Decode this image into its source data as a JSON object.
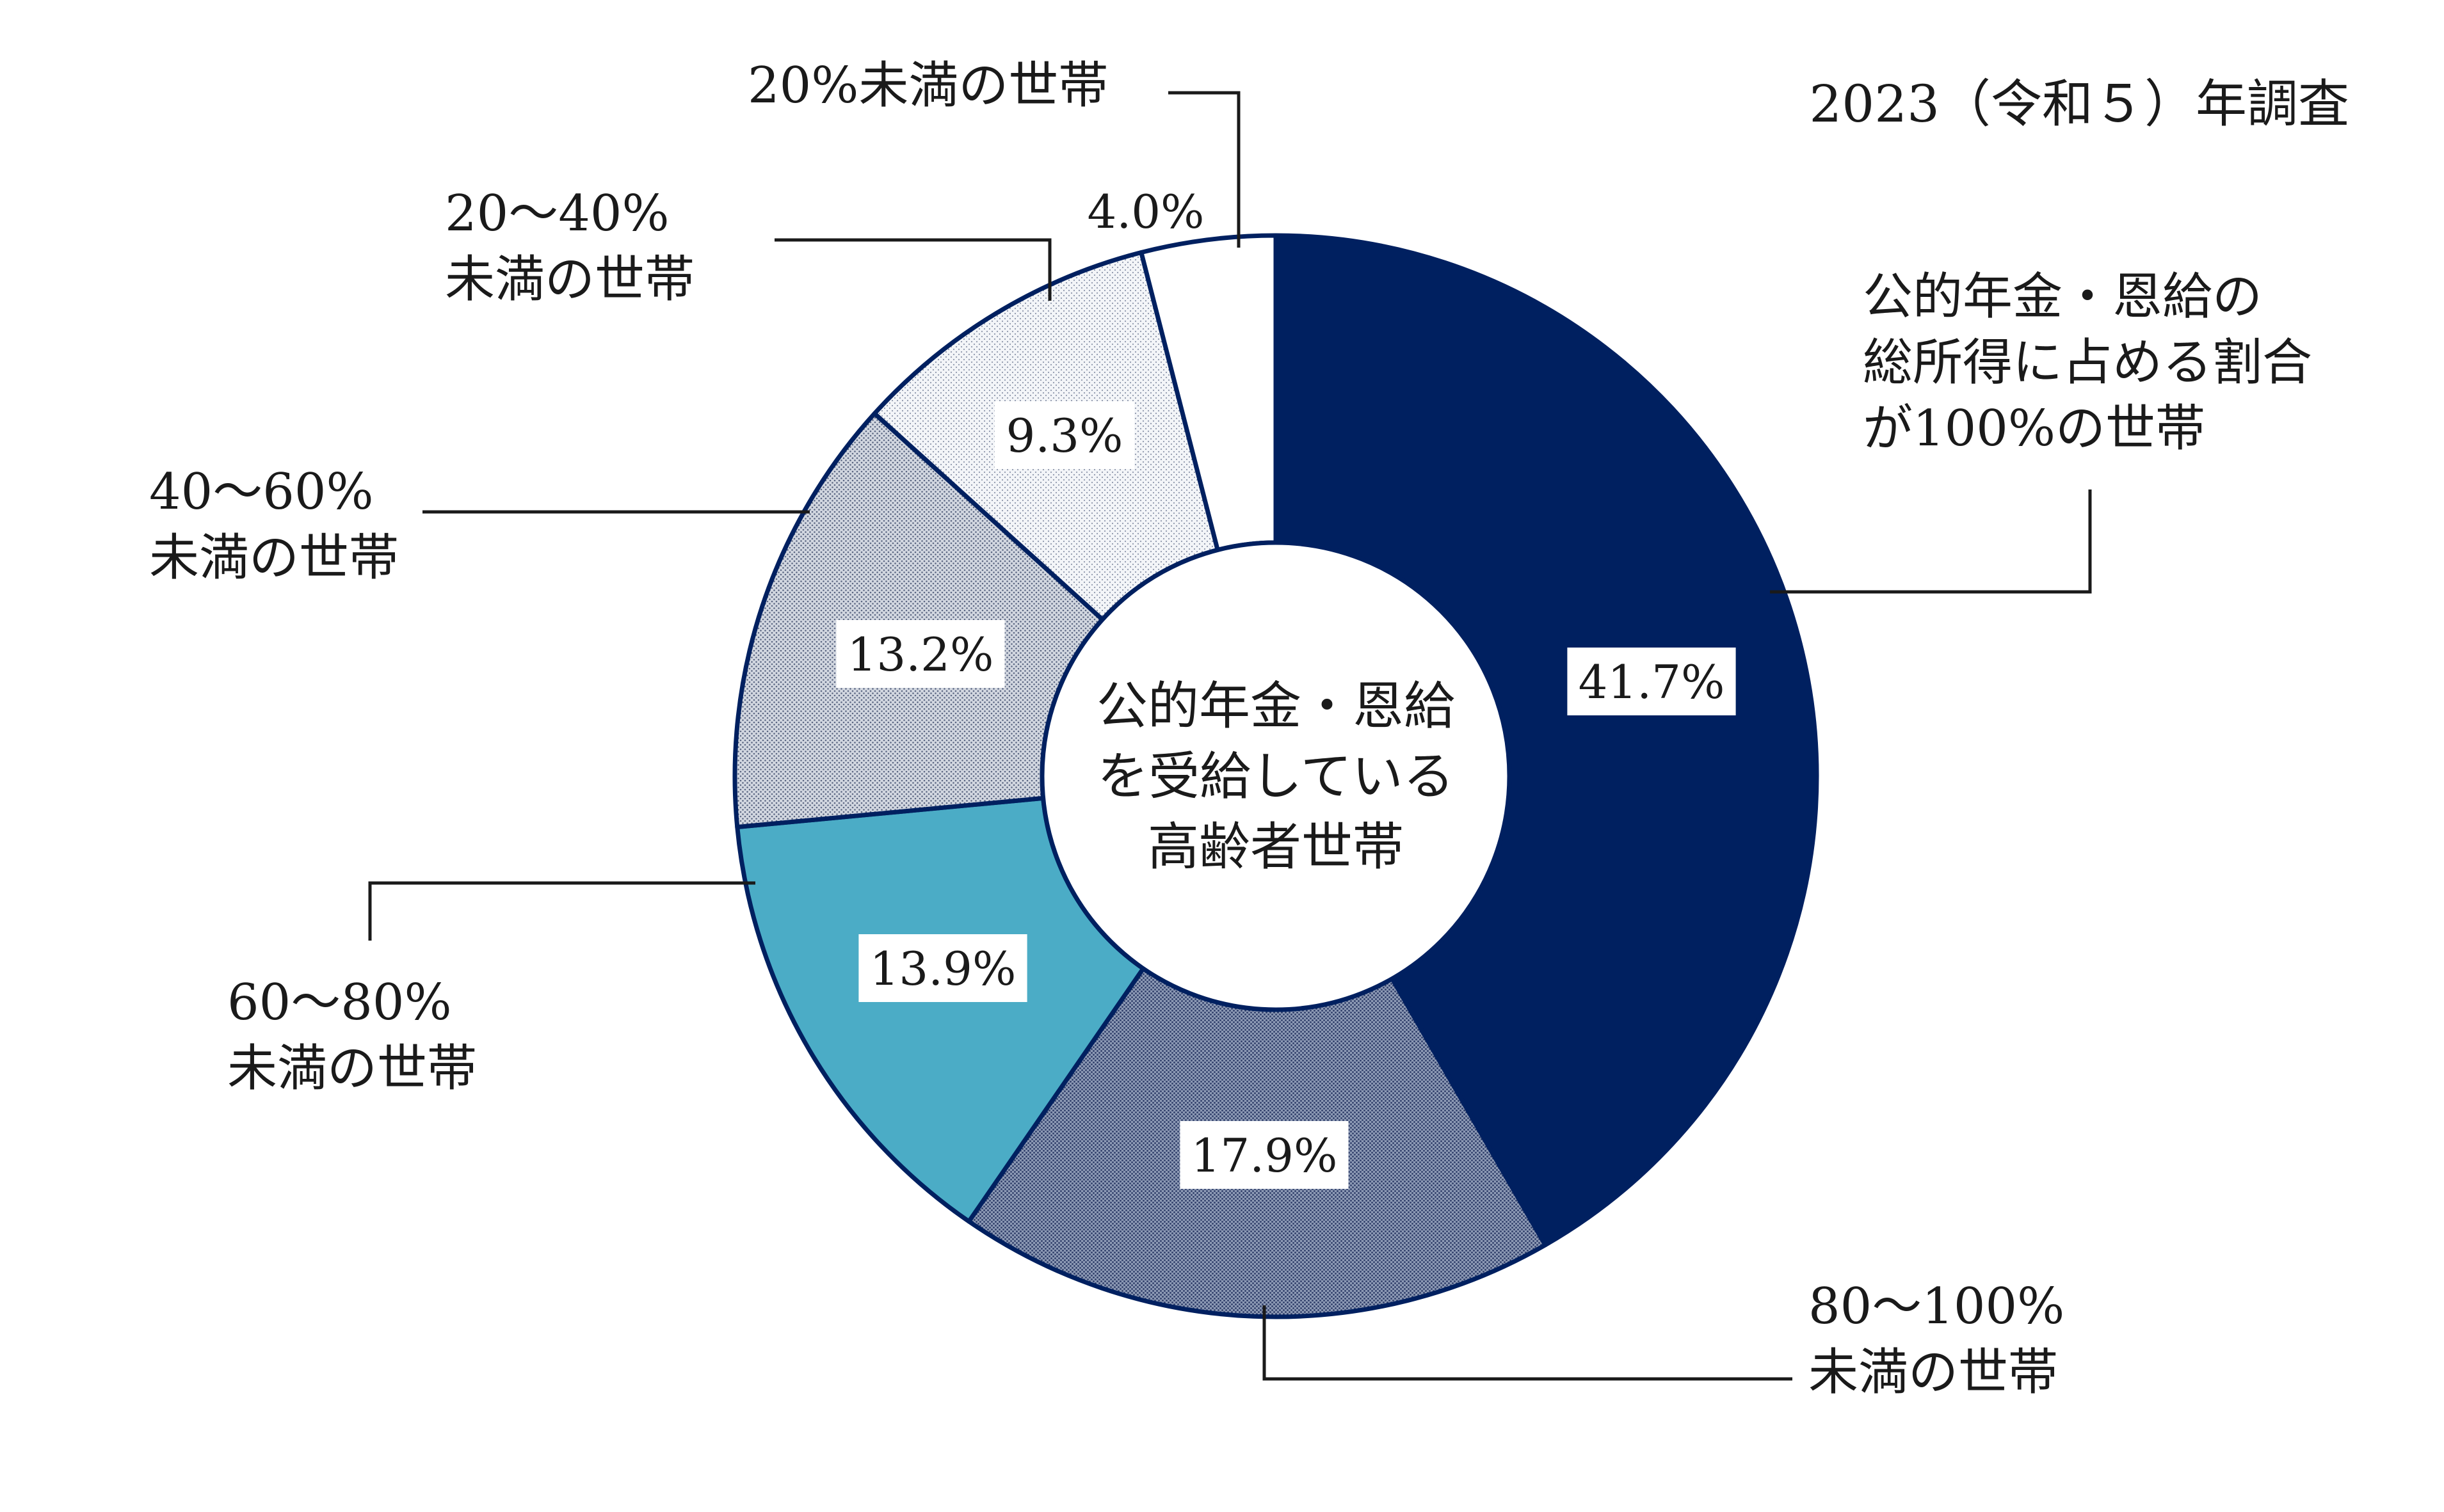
{
  "header": {
    "survey_note": "2023（令和５）年調査"
  },
  "center_label": {
    "lines": [
      "公的年金・恩給",
      "を受給している",
      "高齢者世帯"
    ]
  },
  "chart_data": {
    "type": "pie",
    "title": "",
    "unit": "%",
    "slices": [
      {
        "id": "s100",
        "value": 41.7,
        "value_label": "41.7%",
        "label_lines": [
          "公的年金・恩給の",
          "総所得に占める割合",
          "が100%の世帯"
        ],
        "fill": "#002060",
        "pattern": "solid"
      },
      {
        "id": "s80100",
        "value": 17.9,
        "value_label": "17.9%",
        "label_lines": [
          "80～100%",
          "未満の世帯"
        ],
        "fill": "#8a9ab8",
        "pattern": "dense-dots"
      },
      {
        "id": "s6080",
        "value": 13.9,
        "value_label": "13.9%",
        "label_lines": [
          "60～80%",
          "未満の世帯"
        ],
        "fill": "#4bacc6",
        "pattern": "solid"
      },
      {
        "id": "s4060",
        "value": 13.2,
        "value_label": "13.2%",
        "label_lines": [
          "40～60%",
          "未満の世帯"
        ],
        "fill": "#c4ccd8",
        "pattern": "medium-dots"
      },
      {
        "id": "s2040",
        "value": 9.3,
        "value_label": "9.3%",
        "label_lines": [
          "20～40%",
          "未満の世帯"
        ],
        "fill": "#eceff4",
        "pattern": "light-dots"
      },
      {
        "id": "s20",
        "value": 4.0,
        "value_label": "4.0%",
        "label_lines": [
          "20%未満の世帯"
        ],
        "fill": "#ffffff",
        "pattern": "none"
      }
    ],
    "start_angle_deg": 0,
    "direction": "clockwise",
    "legend": "none",
    "outline_color": "#002060"
  }
}
